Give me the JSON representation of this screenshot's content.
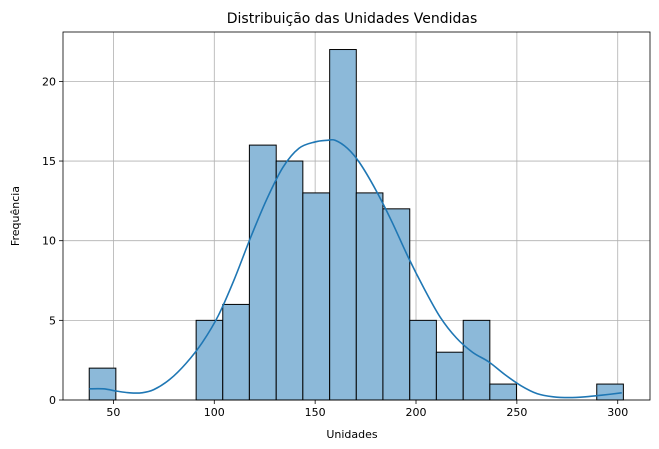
{
  "chart_data": {
    "type": "histogram",
    "title": "Distribuição das Unidades Vendidas",
    "xlabel": "Unidades",
    "ylabel": "Frequência",
    "xlim": [
      25,
      316
    ],
    "ylim": [
      0,
      23.1
    ],
    "xticks": [
      50,
      100,
      150,
      200,
      250,
      300
    ],
    "yticks": [
      0,
      5,
      10,
      15,
      20
    ],
    "grid": true,
    "bar_color": "#8cb9d9",
    "edge_color": "#000000",
    "line_color": "#1f77b4",
    "bins": [
      {
        "start": 38.0,
        "end": 51.2,
        "count": 2
      },
      {
        "start": 51.2,
        "end": 64.5,
        "count": 0
      },
      {
        "start": 64.5,
        "end": 77.7,
        "count": 0
      },
      {
        "start": 77.7,
        "end": 91.0,
        "count": 0
      },
      {
        "start": 91.0,
        "end": 104.2,
        "count": 5
      },
      {
        "start": 104.2,
        "end": 117.4,
        "count": 6
      },
      {
        "start": 117.4,
        "end": 130.7,
        "count": 16
      },
      {
        "start": 130.7,
        "end": 143.9,
        "count": 15
      },
      {
        "start": 143.9,
        "end": 157.2,
        "count": 13
      },
      {
        "start": 157.2,
        "end": 170.4,
        "count": 22
      },
      {
        "start": 170.4,
        "end": 183.6,
        "count": 13
      },
      {
        "start": 183.6,
        "end": 196.9,
        "count": 12
      },
      {
        "start": 196.9,
        "end": 210.1,
        "count": 5
      },
      {
        "start": 210.1,
        "end": 223.4,
        "count": 3
      },
      {
        "start": 223.4,
        "end": 236.6,
        "count": 5
      },
      {
        "start": 236.6,
        "end": 249.8,
        "count": 1
      },
      {
        "start": 249.8,
        "end": 263.1,
        "count": 0
      },
      {
        "start": 263.1,
        "end": 276.3,
        "count": 0
      },
      {
        "start": 276.3,
        "end": 289.6,
        "count": 0
      },
      {
        "start": 289.6,
        "end": 302.8,
        "count": 1
      }
    ],
    "kde": {
      "x": [
        38,
        45,
        52,
        58,
        64,
        70,
        78,
        86,
        94,
        102,
        110,
        118,
        126,
        134,
        142,
        150,
        156,
        160,
        166,
        172,
        180,
        188,
        196,
        204,
        212,
        220,
        228,
        236,
        244,
        252,
        260,
        268,
        276,
        284,
        292,
        302
      ],
      "y": [
        0.7,
        0.7,
        0.55,
        0.45,
        0.45,
        0.65,
        1.3,
        2.3,
        3.6,
        5.3,
        7.6,
        10.2,
        12.6,
        14.6,
        15.8,
        16.2,
        16.3,
        16.3,
        15.8,
        14.9,
        13.2,
        11.2,
        9.0,
        7.0,
        5.2,
        3.9,
        3.0,
        2.4,
        1.6,
        0.9,
        0.4,
        0.2,
        0.15,
        0.2,
        0.3,
        0.45
      ]
    }
  }
}
